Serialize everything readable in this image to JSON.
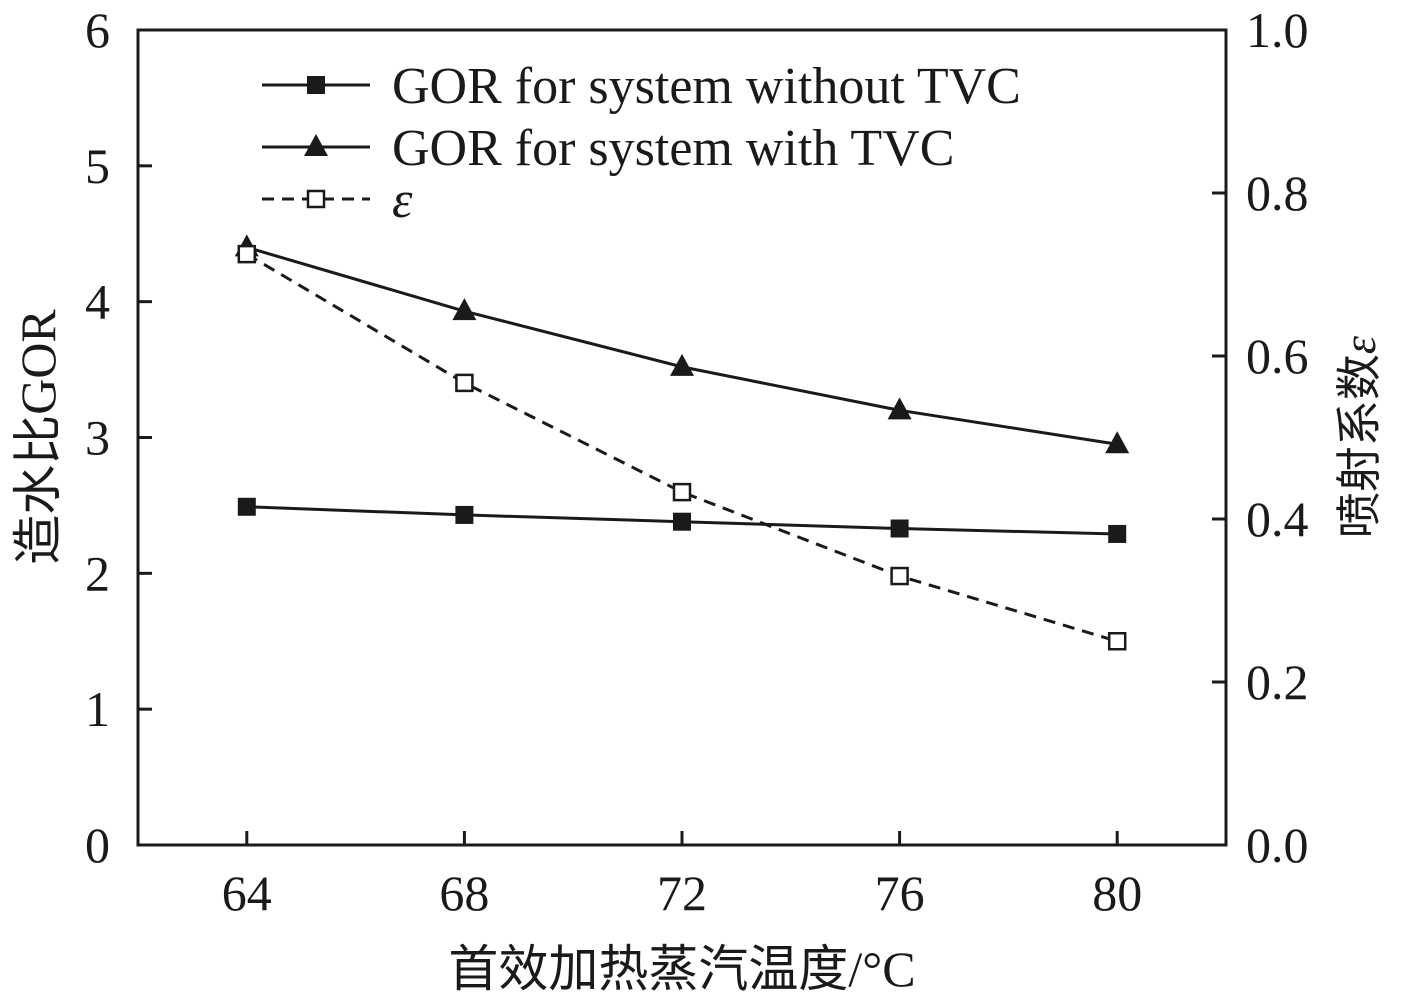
{
  "chart_data": {
    "type": "line",
    "x": [
      64,
      68,
      72,
      76,
      80
    ],
    "xlabel": "首效加热蒸汽温度/°C",
    "xlim": [
      62,
      82
    ],
    "xticks": [
      "64",
      "68",
      "72",
      "76",
      "80"
    ],
    "ylabel": "造水比GOR",
    "ylim": [
      0,
      6
    ],
    "yticks": [
      "0",
      "1",
      "2",
      "3",
      "4",
      "5",
      "6"
    ],
    "y2label": "喷射系数",
    "y2label_symbol": "ε",
    "y2lim": [
      0.0,
      1.0
    ],
    "y2ticks": [
      "0.0",
      "0.2",
      "0.4",
      "0.6",
      "0.8",
      "1.0"
    ],
    "grid": false,
    "legend_position": "top-left",
    "series": [
      {
        "name": "GOR for system without TVC",
        "axis": "left",
        "marker": "filled-square",
        "style": "solid",
        "values": [
          2.49,
          2.43,
          2.38,
          2.33,
          2.29
        ]
      },
      {
        "name": "GOR for system with TVC",
        "axis": "left",
        "marker": "filled-triangle",
        "style": "solid",
        "values": [
          4.4,
          3.93,
          3.52,
          3.2,
          2.95
        ]
      },
      {
        "name": "ε",
        "axis": "right",
        "marker": "open-square",
        "style": "dashed",
        "values": [
          0.725,
          0.567,
          0.433,
          0.33,
          0.25
        ]
      }
    ],
    "colors": {
      "line": "#1a1a1a",
      "background": "#ffffff"
    }
  }
}
